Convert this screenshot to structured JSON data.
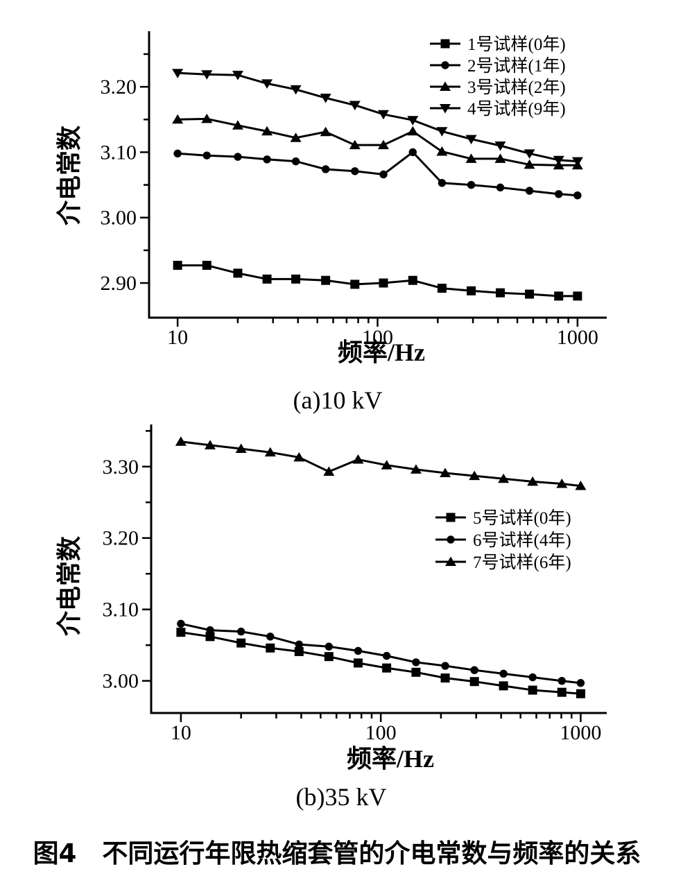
{
  "figure": {
    "caption": "图4　不同运行年限热缩套管的介电常数与频率的关系",
    "background": "#ffffff",
    "line_color": "#000000"
  },
  "chart_data": [
    {
      "type": "line",
      "subcaption": "(a)10 kV",
      "xlabel": "频率/Hz",
      "ylabel": "介电常数",
      "x_scale": "log",
      "xlim": [
        7.2,
        1400
      ],
      "ylim": [
        2.847,
        3.285
      ],
      "x_ticks_major": [
        10,
        100,
        1000
      ],
      "x_ticks_minor": [
        20,
        30,
        40,
        50,
        60,
        70,
        80,
        90,
        200,
        300,
        400,
        500,
        600,
        700,
        800,
        900
      ],
      "y_ticks_major": [
        2.9,
        3.0,
        3.1,
        3.2
      ],
      "y_ticks_minor": [
        2.95,
        3.05,
        3.15,
        3.25
      ],
      "grid": "off",
      "legend_position": "top-right",
      "x": [
        10,
        14,
        20,
        28,
        39,
        55,
        77,
        107,
        150,
        210,
        294,
        411,
        575,
        805,
        1000
      ],
      "series": [
        {
          "name": "1号试样(0年)",
          "marker": "square",
          "values": [
            2.927,
            2.927,
            2.915,
            2.906,
            2.906,
            2.904,
            2.898,
            2.9,
            2.904,
            2.892,
            2.888,
            2.885,
            2.883,
            2.88,
            2.88
          ]
        },
        {
          "name": "2号试样(1年)",
          "marker": "circle",
          "values": [
            3.098,
            3.095,
            3.093,
            3.089,
            3.086,
            3.074,
            3.071,
            3.066,
            3.1,
            3.053,
            3.05,
            3.046,
            3.041,
            3.036,
            3.034
          ]
        },
        {
          "name": "3号试样(2年)",
          "marker": "triangle-up",
          "values": [
            3.15,
            3.151,
            3.141,
            3.132,
            3.122,
            3.131,
            3.111,
            3.111,
            3.132,
            3.101,
            3.09,
            3.09,
            3.081,
            3.08,
            3.08
          ]
        },
        {
          "name": "4号试样(9年)",
          "marker": "triangle-down",
          "values": [
            3.221,
            3.219,
            3.218,
            3.205,
            3.196,
            3.183,
            3.172,
            3.158,
            3.149,
            3.132,
            3.12,
            3.11,
            3.098,
            3.088,
            3.086
          ]
        }
      ]
    },
    {
      "type": "line",
      "subcaption": "(b)35 kV",
      "xlabel": "频率/Hz",
      "ylabel": "介电常数",
      "x_scale": "log",
      "xlim": [
        7.1,
        1350
      ],
      "ylim": [
        2.955,
        3.359
      ],
      "x_ticks_major": [
        10,
        100,
        1000
      ],
      "x_ticks_minor": [
        20,
        30,
        40,
        50,
        60,
        70,
        80,
        90,
        200,
        300,
        400,
        500,
        600,
        700,
        800,
        900
      ],
      "y_ticks_major": [
        3.0,
        3.1,
        3.2,
        3.3
      ],
      "y_ticks_minor": [
        3.05,
        3.15,
        3.25,
        3.35
      ],
      "grid": "off",
      "legend_position": "middle-right",
      "x": [
        10,
        14,
        20,
        28,
        39,
        55,
        77,
        107,
        150,
        210,
        294,
        411,
        575,
        805,
        1000
      ],
      "series": [
        {
          "name": "5号试样(0年)",
          "marker": "square",
          "values": [
            3.068,
            3.062,
            3.053,
            3.046,
            3.041,
            3.034,
            3.025,
            3.018,
            3.012,
            3.004,
            2.999,
            2.993,
            2.987,
            2.984,
            2.982
          ]
        },
        {
          "name": "6号试样(4年)",
          "marker": "circle",
          "values": [
            3.08,
            3.071,
            3.069,
            3.062,
            3.051,
            3.048,
            3.042,
            3.035,
            3.026,
            3.021,
            3.015,
            3.01,
            3.005,
            3.0,
            2.997
          ]
        },
        {
          "name": "7号试样(6年)",
          "marker": "triangle-up",
          "values": [
            3.335,
            3.33,
            3.325,
            3.32,
            3.313,
            3.293,
            3.31,
            3.302,
            3.296,
            3.291,
            3.287,
            3.283,
            3.279,
            3.276,
            3.273
          ]
        }
      ]
    }
  ]
}
